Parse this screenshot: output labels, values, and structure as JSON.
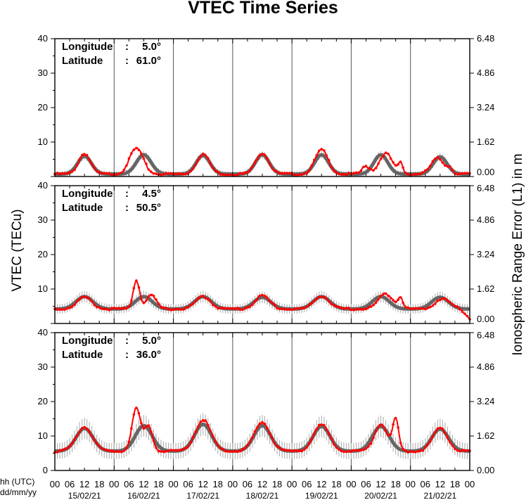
{
  "chart_data": {
    "type": "line",
    "title": "VTEC Time Series",
    "ylabel": "VTEC (TECu)",
    "ylabel_right": "Ionospheric Range Error (L1) in m",
    "xlabel_hours": "hh (UTC)",
    "xlabel_dates": "dd/mm/yy",
    "ylim": [
      0,
      40
    ],
    "yticks": [
      "0",
      "10",
      "20",
      "30",
      "40"
    ],
    "yticks_right": [
      "0.00",
      "1.62",
      "3.24",
      "4.86",
      "6.48"
    ],
    "hour_ticks": [
      "00",
      "06",
      "12",
      "18",
      "00",
      "06",
      "12",
      "18",
      "00",
      "06",
      "12",
      "18",
      "00",
      "06",
      "12",
      "18",
      "00",
      "06",
      "12",
      "18",
      "00",
      "06",
      "12",
      "18",
      "00",
      "06",
      "12",
      "18",
      "00"
    ],
    "dates": [
      "15/02/21",
      "16/02/21",
      "17/02/21",
      "18/02/21",
      "19/02/21",
      "20/02/21",
      "21/02/21"
    ],
    "colors": {
      "measured": "#ff0000",
      "reference": "#666666",
      "errorbar": "#aaaaaa"
    },
    "panels": [
      {
        "lon_label": "Longitude",
        "lon_value": "5.0°",
        "lat_label": "Latitude",
        "lat_value": "61.0°",
        "base": 0.7,
        "red_peaks": [
          {
            "center": 12,
            "width": 2.4,
            "amp": 6.0
          },
          {
            "center": 33,
            "width": 2.8,
            "amp": 7.4
          },
          {
            "center": 60,
            "width": 2.6,
            "amp": 5.8
          },
          {
            "center": 84,
            "width": 2.6,
            "amp": 6.2
          },
          {
            "center": 108,
            "width": 2.7,
            "amp": 7.0
          },
          {
            "center": 126,
            "width": 1.6,
            "amp": 2.2
          },
          {
            "center": 134,
            "width": 2.6,
            "amp": 6.0
          },
          {
            "center": 140,
            "width": 1.0,
            "amp": 3.0
          },
          {
            "center": 155,
            "width": 2.6,
            "amp": 4.6
          },
          {
            "center": 160,
            "width": 1.2,
            "amp": 1.5
          }
        ],
        "grey_peaks": [
          {
            "center": 12,
            "width": 2.8,
            "amp": 5.2
          },
          {
            "center": 36,
            "width": 3.0,
            "amp": 5.6
          },
          {
            "center": 60,
            "width": 2.8,
            "amp": 5.4
          },
          {
            "center": 84,
            "width": 2.8,
            "amp": 5.6
          },
          {
            "center": 108,
            "width": 2.8,
            "amp": 5.6
          },
          {
            "center": 132,
            "width": 2.8,
            "amp": 5.6
          },
          {
            "center": 156,
            "width": 2.8,
            "amp": 5.0
          }
        ],
        "err": 1.3
      },
      {
        "lon_label": "Longitude",
        "lon_value": "4.5°",
        "lat_label": "Latitude",
        "lat_value": "50.5°",
        "base": 4.2,
        "red_peaks": [
          {
            "center": 12,
            "width": 3.0,
            "amp": 3.4
          },
          {
            "center": 33,
            "width": 1.3,
            "amp": 8.4
          },
          {
            "center": 39,
            "width": 2.0,
            "amp": 4.0
          },
          {
            "center": 60,
            "width": 3.0,
            "amp": 3.6
          },
          {
            "center": 84,
            "width": 3.0,
            "amp": 3.8
          },
          {
            "center": 108,
            "width": 3.0,
            "amp": 3.8
          },
          {
            "center": 134,
            "width": 3.0,
            "amp": 4.4
          },
          {
            "center": 140,
            "width": 1.0,
            "amp": 3.0
          },
          {
            "center": 157,
            "width": 3.0,
            "amp": 3.0
          }
        ],
        "grey_peaks": [
          {
            "center": 12,
            "width": 3.4,
            "amp": 3.6
          },
          {
            "center": 36,
            "width": 3.4,
            "amp": 3.6
          },
          {
            "center": 60,
            "width": 3.4,
            "amp": 3.6
          },
          {
            "center": 84,
            "width": 3.4,
            "amp": 3.4
          },
          {
            "center": 108,
            "width": 3.4,
            "amp": 3.6
          },
          {
            "center": 132,
            "width": 3.4,
            "amp": 3.6
          },
          {
            "center": 156,
            "width": 3.4,
            "amp": 3.4
          }
        ],
        "end_value": 1.5,
        "err": 1.8
      },
      {
        "lon_label": "Longitude",
        "lon_value": "5.0°",
        "lat_label": "Latitude",
        "lat_value": "36.0°",
        "base": 5.6,
        "red_peaks": [
          {
            "center": 12,
            "width": 3.2,
            "amp": 7.0
          },
          {
            "center": 33,
            "width": 1.8,
            "amp": 12.4
          },
          {
            "center": 38,
            "width": 1.6,
            "amp": 7.0
          },
          {
            "center": 60,
            "width": 3.2,
            "amp": 9.0
          },
          {
            "center": 84,
            "width": 3.2,
            "amp": 8.4
          },
          {
            "center": 108,
            "width": 3.2,
            "amp": 7.6
          },
          {
            "center": 132,
            "width": 2.6,
            "amp": 8.0
          },
          {
            "center": 138,
            "width": 1.2,
            "amp": 9.0
          },
          {
            "center": 156,
            "width": 3.0,
            "amp": 6.6
          }
        ],
        "grey_peaks": [
          {
            "center": 12,
            "width": 3.4,
            "amp": 6.6
          },
          {
            "center": 36,
            "width": 3.4,
            "amp": 7.4
          },
          {
            "center": 60,
            "width": 3.4,
            "amp": 7.8
          },
          {
            "center": 84,
            "width": 3.4,
            "amp": 7.4
          },
          {
            "center": 108,
            "width": 3.4,
            "amp": 7.2
          },
          {
            "center": 132,
            "width": 3.4,
            "amp": 7.2
          },
          {
            "center": 156,
            "width": 3.4,
            "amp": 6.4
          }
        ],
        "err": 2.8
      }
    ]
  }
}
